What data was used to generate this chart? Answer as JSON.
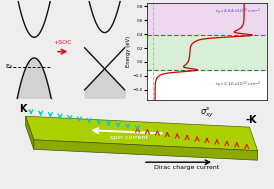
{
  "bg_color": "#eeeeee",
  "left_panel_bg": "#f0f0f0",
  "right_inset_bg": "#ffffff",
  "band_color": "#111111",
  "fill_color": "#cccccc",
  "ef_color": "#000000",
  "soc_arrow_color": "#dd1111",
  "curve_color": "#cc0000",
  "upper_band_color": "#5555ee",
  "lower_band_color": "#228822",
  "upper_shade": "#e8c8e8",
  "lower_shade": "#c8e8c8",
  "slab_top": "#aad000",
  "slab_left": "#7a9900",
  "slab_front": "#8aaa00",
  "arrow_up_color": "#dd2222",
  "arrow_down_color": "#00cccc",
  "spin_arrow_color": "#ffffff",
  "charge_arrow_color": "#111111",
  "K_label": "K",
  "mK_label": "-K",
  "spin_label": "spin current",
  "charge_label": "Dirac charge current",
  "sigma_label": "$\\sigma^s_{xy}$",
  "ne_label": "n$_e$=4.64×10$^{13}$ cm$^{-2}$",
  "nh_label": "n$_h$=2.16×10$^{13}$ cm$^{-2}$",
  "ylabel": "Energy (eV)",
  "upper_e": 0.38,
  "lower_e": -0.12,
  "ne_label_color": "#4444cc",
  "nh_label_color": "#226622"
}
